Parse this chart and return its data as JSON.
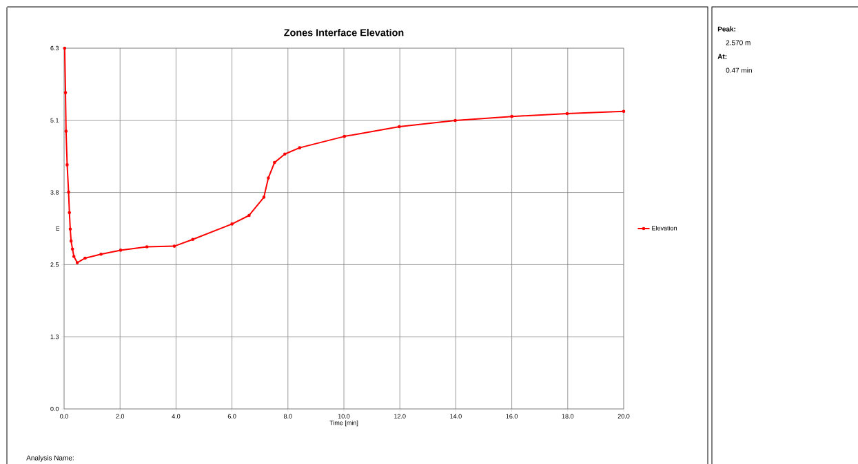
{
  "chart_data": {
    "type": "line",
    "title": "Zones Interface Elevation",
    "xlabel": "Time [min]",
    "ylabel": "m",
    "series": [
      {
        "name": "Elevation",
        "color": "#ff0000",
        "x": [
          0.02,
          0.05,
          0.07,
          0.11,
          0.16,
          0.19,
          0.22,
          0.25,
          0.3,
          0.35,
          0.47,
          0.75,
          1.32,
          2.02,
          2.96,
          3.94,
          4.6,
          6.0,
          6.61,
          7.14,
          7.3,
          7.52,
          7.89,
          8.42,
          10.02,
          11.98,
          13.98,
          16.0,
          17.98,
          20.0
        ],
        "values": [
          6.34,
          5.56,
          4.88,
          4.29,
          3.81,
          3.45,
          3.16,
          2.95,
          2.81,
          2.68,
          2.57,
          2.65,
          2.72,
          2.79,
          2.85,
          2.86,
          2.98,
          3.25,
          3.4,
          3.72,
          4.06,
          4.33,
          4.48,
          4.59,
          4.79,
          4.96,
          5.07,
          5.14,
          5.19,
          5.23
        ]
      }
    ],
    "xlim": [
      0,
      20
    ],
    "ylim": [
      0,
      6.34
    ],
    "xticks": [
      {
        "value": 0,
        "label": "0.0"
      },
      {
        "value": 2,
        "label": "2.0"
      },
      {
        "value": 4,
        "label": "4.0"
      },
      {
        "value": 6,
        "label": "6.0"
      },
      {
        "value": 8,
        "label": "8.0"
      },
      {
        "value": 10,
        "label": "10.0"
      },
      {
        "value": 12,
        "label": "12.0"
      },
      {
        "value": 14,
        "label": "14.0"
      },
      {
        "value": 16,
        "label": "16.0"
      },
      {
        "value": 18,
        "label": "18.0"
      },
      {
        "value": 20,
        "label": "20.0"
      }
    ],
    "yticks": [
      {
        "value": 0,
        "label": "0.0"
      },
      {
        "value": 1.268,
        "label": "1.3"
      },
      {
        "value": 2.536,
        "label": "2.5"
      },
      {
        "value": 3.804,
        "label": "3.8"
      },
      {
        "value": 5.072,
        "label": "5.1"
      },
      {
        "value": 6.34,
        "label": "6.3"
      }
    ],
    "grid": true,
    "legend": "right",
    "marker": "circle",
    "line_style": "solid",
    "annotations": [
      "Peak:",
      "2.570 m",
      "At:",
      "0.47 min",
      "Analysis Name:"
    ]
  }
}
